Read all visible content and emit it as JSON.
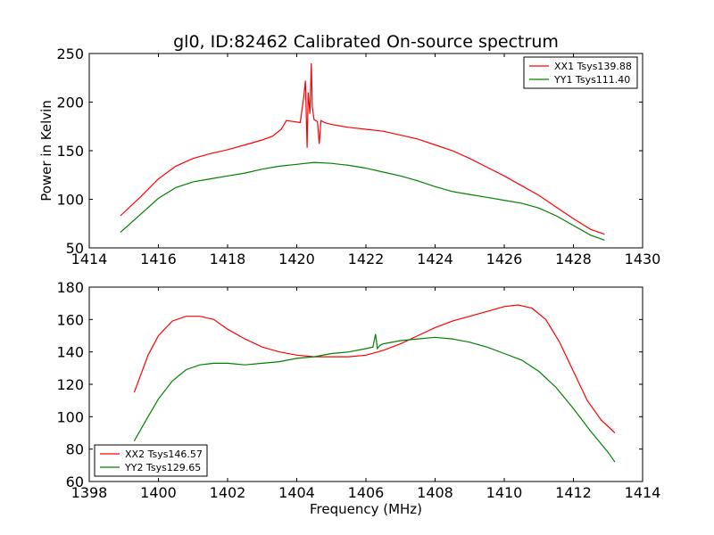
{
  "figure": {
    "title": "gl0, ID:82462 Calibrated On-source spectrum",
    "xlabel_bottom": "Frequency (MHz)"
  },
  "colors": {
    "red": "#ff0000",
    "green": "#008000",
    "axes": "#000000"
  },
  "chart_data": [
    {
      "type": "line",
      "title": "gl0, ID:82462 Calibrated On-source spectrum",
      "xlabel": "",
      "ylabel": "Power in Kelvin",
      "xlim": [
        1414,
        1430
      ],
      "ylim": [
        50,
        250
      ],
      "xticks": [
        1414,
        1416,
        1418,
        1420,
        1422,
        1424,
        1426,
        1428,
        1430
      ],
      "yticks": [
        50,
        100,
        150,
        200,
        250
      ],
      "grid": false,
      "legend_position": "top-right",
      "series": [
        {
          "name": "XX1 Tsys139.88",
          "color": "#ff0000",
          "x": [
            1414.9,
            1415.5,
            1416.0,
            1416.5,
            1417.0,
            1417.5,
            1418.0,
            1418.5,
            1419.0,
            1419.3,
            1419.55,
            1419.7,
            1419.9,
            1420.1,
            1420.2,
            1420.25,
            1420.3,
            1420.33,
            1420.38,
            1420.42,
            1420.45,
            1420.5,
            1420.6,
            1420.65,
            1420.7,
            1420.8,
            1421.0,
            1421.5,
            1422.0,
            1422.5,
            1423.0,
            1423.5,
            1424.0,
            1424.5,
            1425.0,
            1425.5,
            1426.0,
            1426.5,
            1427.0,
            1427.5,
            1428.0,
            1428.5,
            1428.9
          ],
          "values": [
            83,
            103,
            121,
            134,
            142,
            147,
            151,
            156,
            161,
            165,
            172,
            181,
            180,
            179,
            205,
            222,
            153,
            210,
            188,
            240,
            195,
            182,
            180,
            157,
            181,
            179,
            177,
            174,
            172,
            170,
            166,
            162,
            156,
            150,
            142,
            133,
            124,
            114,
            104,
            92,
            80,
            69,
            64
          ]
        },
        {
          "name": "YY1 Tsys111.40",
          "color": "#008000",
          "x": [
            1414.9,
            1415.5,
            1416.0,
            1416.5,
            1417.0,
            1417.5,
            1418.0,
            1418.5,
            1419.0,
            1419.5,
            1420.0,
            1420.5,
            1421.0,
            1421.5,
            1422.0,
            1422.5,
            1423.0,
            1423.5,
            1424.0,
            1424.5,
            1425.0,
            1425.5,
            1426.0,
            1426.5,
            1427.0,
            1427.5,
            1428.0,
            1428.5,
            1428.9
          ],
          "values": [
            66,
            85,
            101,
            112,
            118,
            121,
            124,
            127,
            131,
            134,
            136,
            138,
            137,
            135,
            132,
            128,
            124,
            119,
            113,
            108,
            105,
            102,
            99,
            96,
            91,
            83,
            73,
            63,
            58
          ]
        }
      ]
    },
    {
      "type": "line",
      "title": "",
      "xlabel": "Frequency (MHz)",
      "ylabel": "",
      "xlim": [
        1398,
        1414
      ],
      "ylim": [
        60,
        180
      ],
      "xticks": [
        1398,
        1400,
        1402,
        1404,
        1406,
        1408,
        1410,
        1412,
        1414
      ],
      "yticks": [
        60,
        80,
        100,
        120,
        140,
        160,
        180
      ],
      "grid": false,
      "legend_position": "bottom-left",
      "series": [
        {
          "name": "XX2 Tsys146.57",
          "color": "#ff0000",
          "x": [
            1399.3,
            1399.7,
            1400.0,
            1400.4,
            1400.8,
            1401.2,
            1401.6,
            1402.0,
            1402.5,
            1403.0,
            1403.5,
            1404.0,
            1404.5,
            1405.0,
            1405.5,
            1406.0,
            1406.5,
            1407.0,
            1407.5,
            1408.0,
            1408.5,
            1409.0,
            1409.5,
            1410.0,
            1410.4,
            1410.8,
            1411.2,
            1411.6,
            1412.0,
            1412.4,
            1412.8,
            1413.2
          ],
          "values": [
            115,
            138,
            150,
            159,
            162,
            162,
            160,
            154,
            148,
            143,
            140,
            138,
            137,
            137,
            137,
            138,
            141,
            145,
            150,
            155,
            159,
            162,
            165,
            168,
            169,
            167,
            160,
            146,
            128,
            110,
            98,
            90
          ]
        },
        {
          "name": "YY2 Tsys129.65",
          "color": "#008000",
          "x": [
            1399.3,
            1399.7,
            1400.0,
            1400.4,
            1400.8,
            1401.2,
            1401.6,
            1402.0,
            1402.5,
            1403.0,
            1403.5,
            1404.0,
            1404.5,
            1405.0,
            1405.5,
            1406.0,
            1406.2,
            1406.28,
            1406.33,
            1406.4,
            1406.5,
            1407.0,
            1407.5,
            1408.0,
            1408.5,
            1409.0,
            1409.5,
            1410.0,
            1410.5,
            1411.0,
            1411.5,
            1412.0,
            1412.5,
            1413.0,
            1413.2
          ],
          "values": [
            85,
            100,
            111,
            122,
            129,
            132,
            133,
            133,
            132,
            133,
            134,
            136,
            137,
            139,
            140,
            142,
            143,
            151,
            142,
            144,
            145,
            147,
            148,
            149,
            148,
            146,
            143,
            139,
            135,
            128,
            118,
            105,
            91,
            78,
            72
          ]
        }
      ]
    }
  ]
}
